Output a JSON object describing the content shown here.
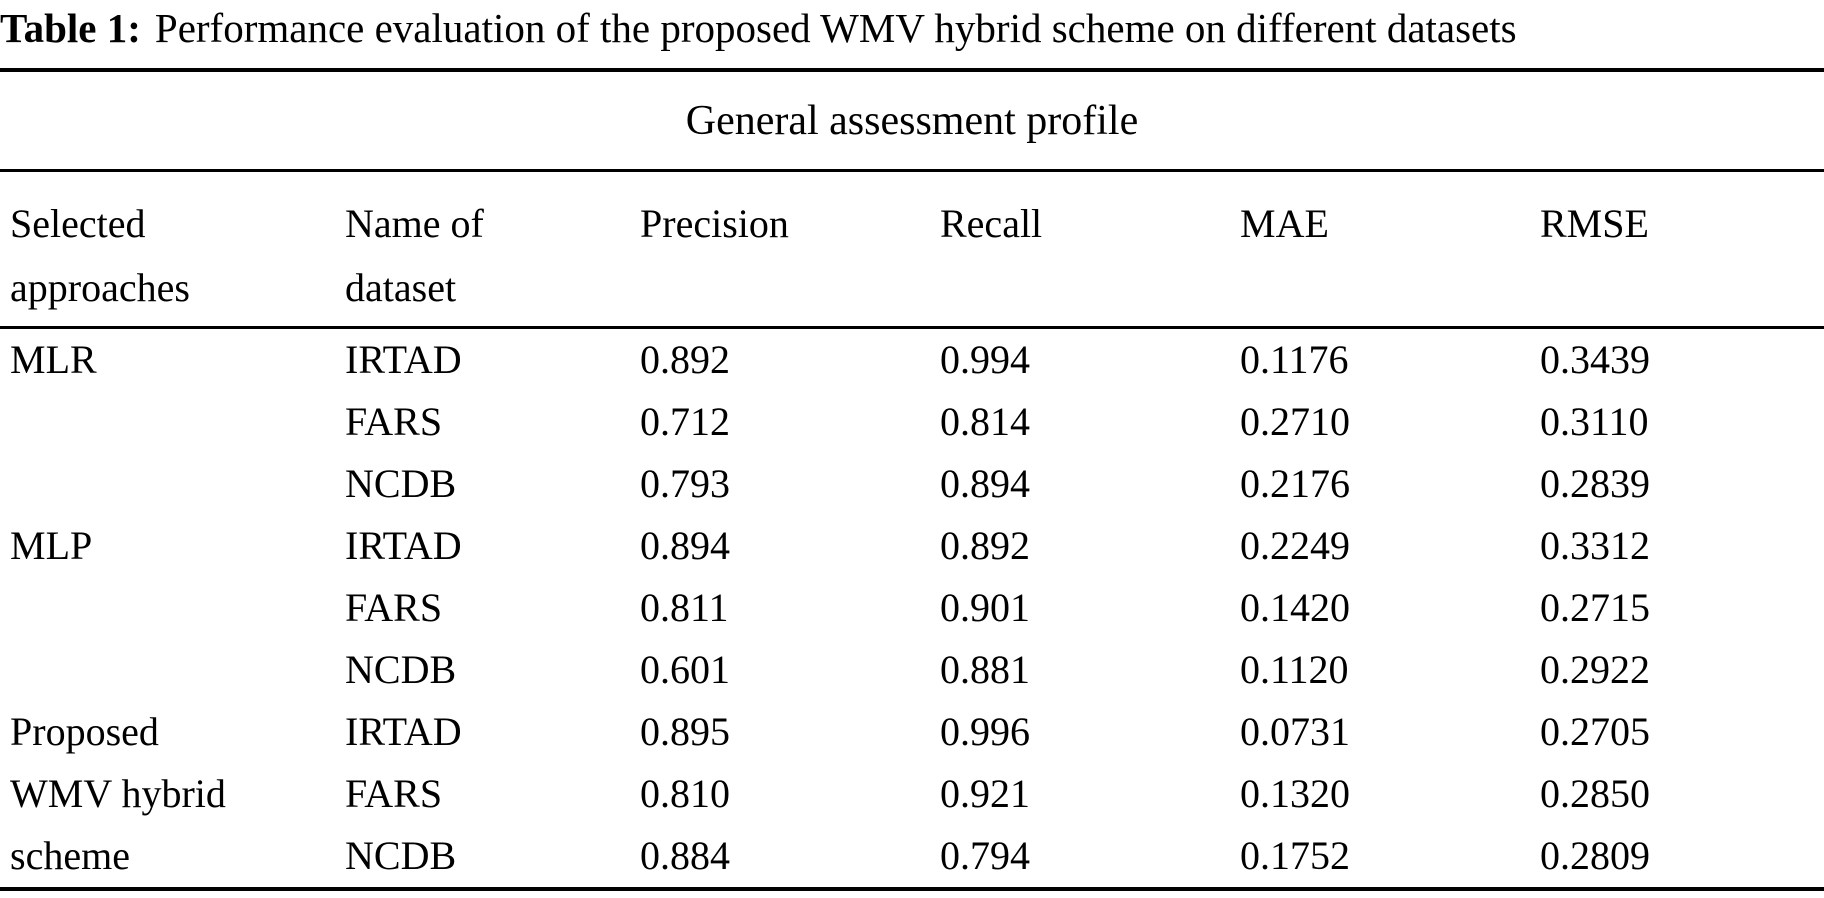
{
  "caption": {
    "label": "Table 1:",
    "text": "Performance evaluation of the proposed WMV hybrid scheme on different datasets"
  },
  "table": {
    "span_header": "General assessment profile",
    "columns": [
      "Selected\napproaches",
      "Name of\ndataset",
      "Precision",
      "Recall",
      "MAE",
      "RMSE"
    ],
    "groups": [
      {
        "approach": "MLR",
        "rows": [
          {
            "dataset": "IRTAD",
            "precision": "0.892",
            "recall": "0.994",
            "mae": "0.1176",
            "rmse": "0.3439"
          },
          {
            "dataset": "FARS",
            "precision": "0.712",
            "recall": "0.814",
            "mae": "0.2710",
            "rmse": "0.3110"
          },
          {
            "dataset": "NCDB",
            "precision": "0.793",
            "recall": "0.894",
            "mae": "0.2176",
            "rmse": "0.2839"
          }
        ]
      },
      {
        "approach": "MLP",
        "rows": [
          {
            "dataset": "IRTAD",
            "precision": "0.894",
            "recall": "0.892",
            "mae": "0.2249",
            "rmse": "0.3312"
          },
          {
            "dataset": "FARS",
            "precision": "0.811",
            "recall": "0.901",
            "mae": "0.1420",
            "rmse": "0.2715"
          },
          {
            "dataset": "NCDB",
            "precision": "0.601",
            "recall": "0.881",
            "mae": "0.1120",
            "rmse": "0.2922"
          }
        ]
      },
      {
        "approach": "Proposed\nWMV hybrid\nscheme",
        "rows": [
          {
            "dataset": "IRTAD",
            "precision": "0.895",
            "recall": "0.996",
            "mae": "0.0731",
            "rmse": "0.2705"
          },
          {
            "dataset": "FARS",
            "precision": "0.810",
            "recall": "0.921",
            "mae": "0.1320",
            "rmse": "0.2850"
          },
          {
            "dataset": "NCDB",
            "precision": "0.884",
            "recall": "0.794",
            "mae": "0.1752",
            "rmse": "0.2809"
          }
        ]
      }
    ]
  },
  "colors": {
    "text": "#000000",
    "background": "#ffffff",
    "rule": "#000000"
  },
  "chart_data": {
    "type": "table",
    "title": "Table 1: Performance evaluation of the proposed WMV hybrid scheme on different datasets",
    "span_header": "General assessment profile",
    "columns": [
      "Selected approaches",
      "Name of dataset",
      "Precision",
      "Recall",
      "MAE",
      "RMSE"
    ],
    "rows": [
      [
        "MLR",
        "IRTAD",
        0.892,
        0.994,
        0.1176,
        0.3439
      ],
      [
        "MLR",
        "FARS",
        0.712,
        0.814,
        0.271,
        0.311
      ],
      [
        "MLR",
        "NCDB",
        0.793,
        0.894,
        0.2176,
        0.2839
      ],
      [
        "MLP",
        "IRTAD",
        0.894,
        0.892,
        0.2249,
        0.3312
      ],
      [
        "MLP",
        "FARS",
        0.811,
        0.901,
        0.142,
        0.2715
      ],
      [
        "MLP",
        "NCDB",
        0.601,
        0.881,
        0.112,
        0.2922
      ],
      [
        "Proposed WMV hybrid scheme",
        "IRTAD",
        0.895,
        0.996,
        0.0731,
        0.2705
      ],
      [
        "Proposed WMV hybrid scheme",
        "FARS",
        0.81,
        0.921,
        0.132,
        0.285
      ],
      [
        "Proposed WMV hybrid scheme",
        "NCDB",
        0.884,
        0.794,
        0.1752,
        0.2809
      ]
    ]
  }
}
